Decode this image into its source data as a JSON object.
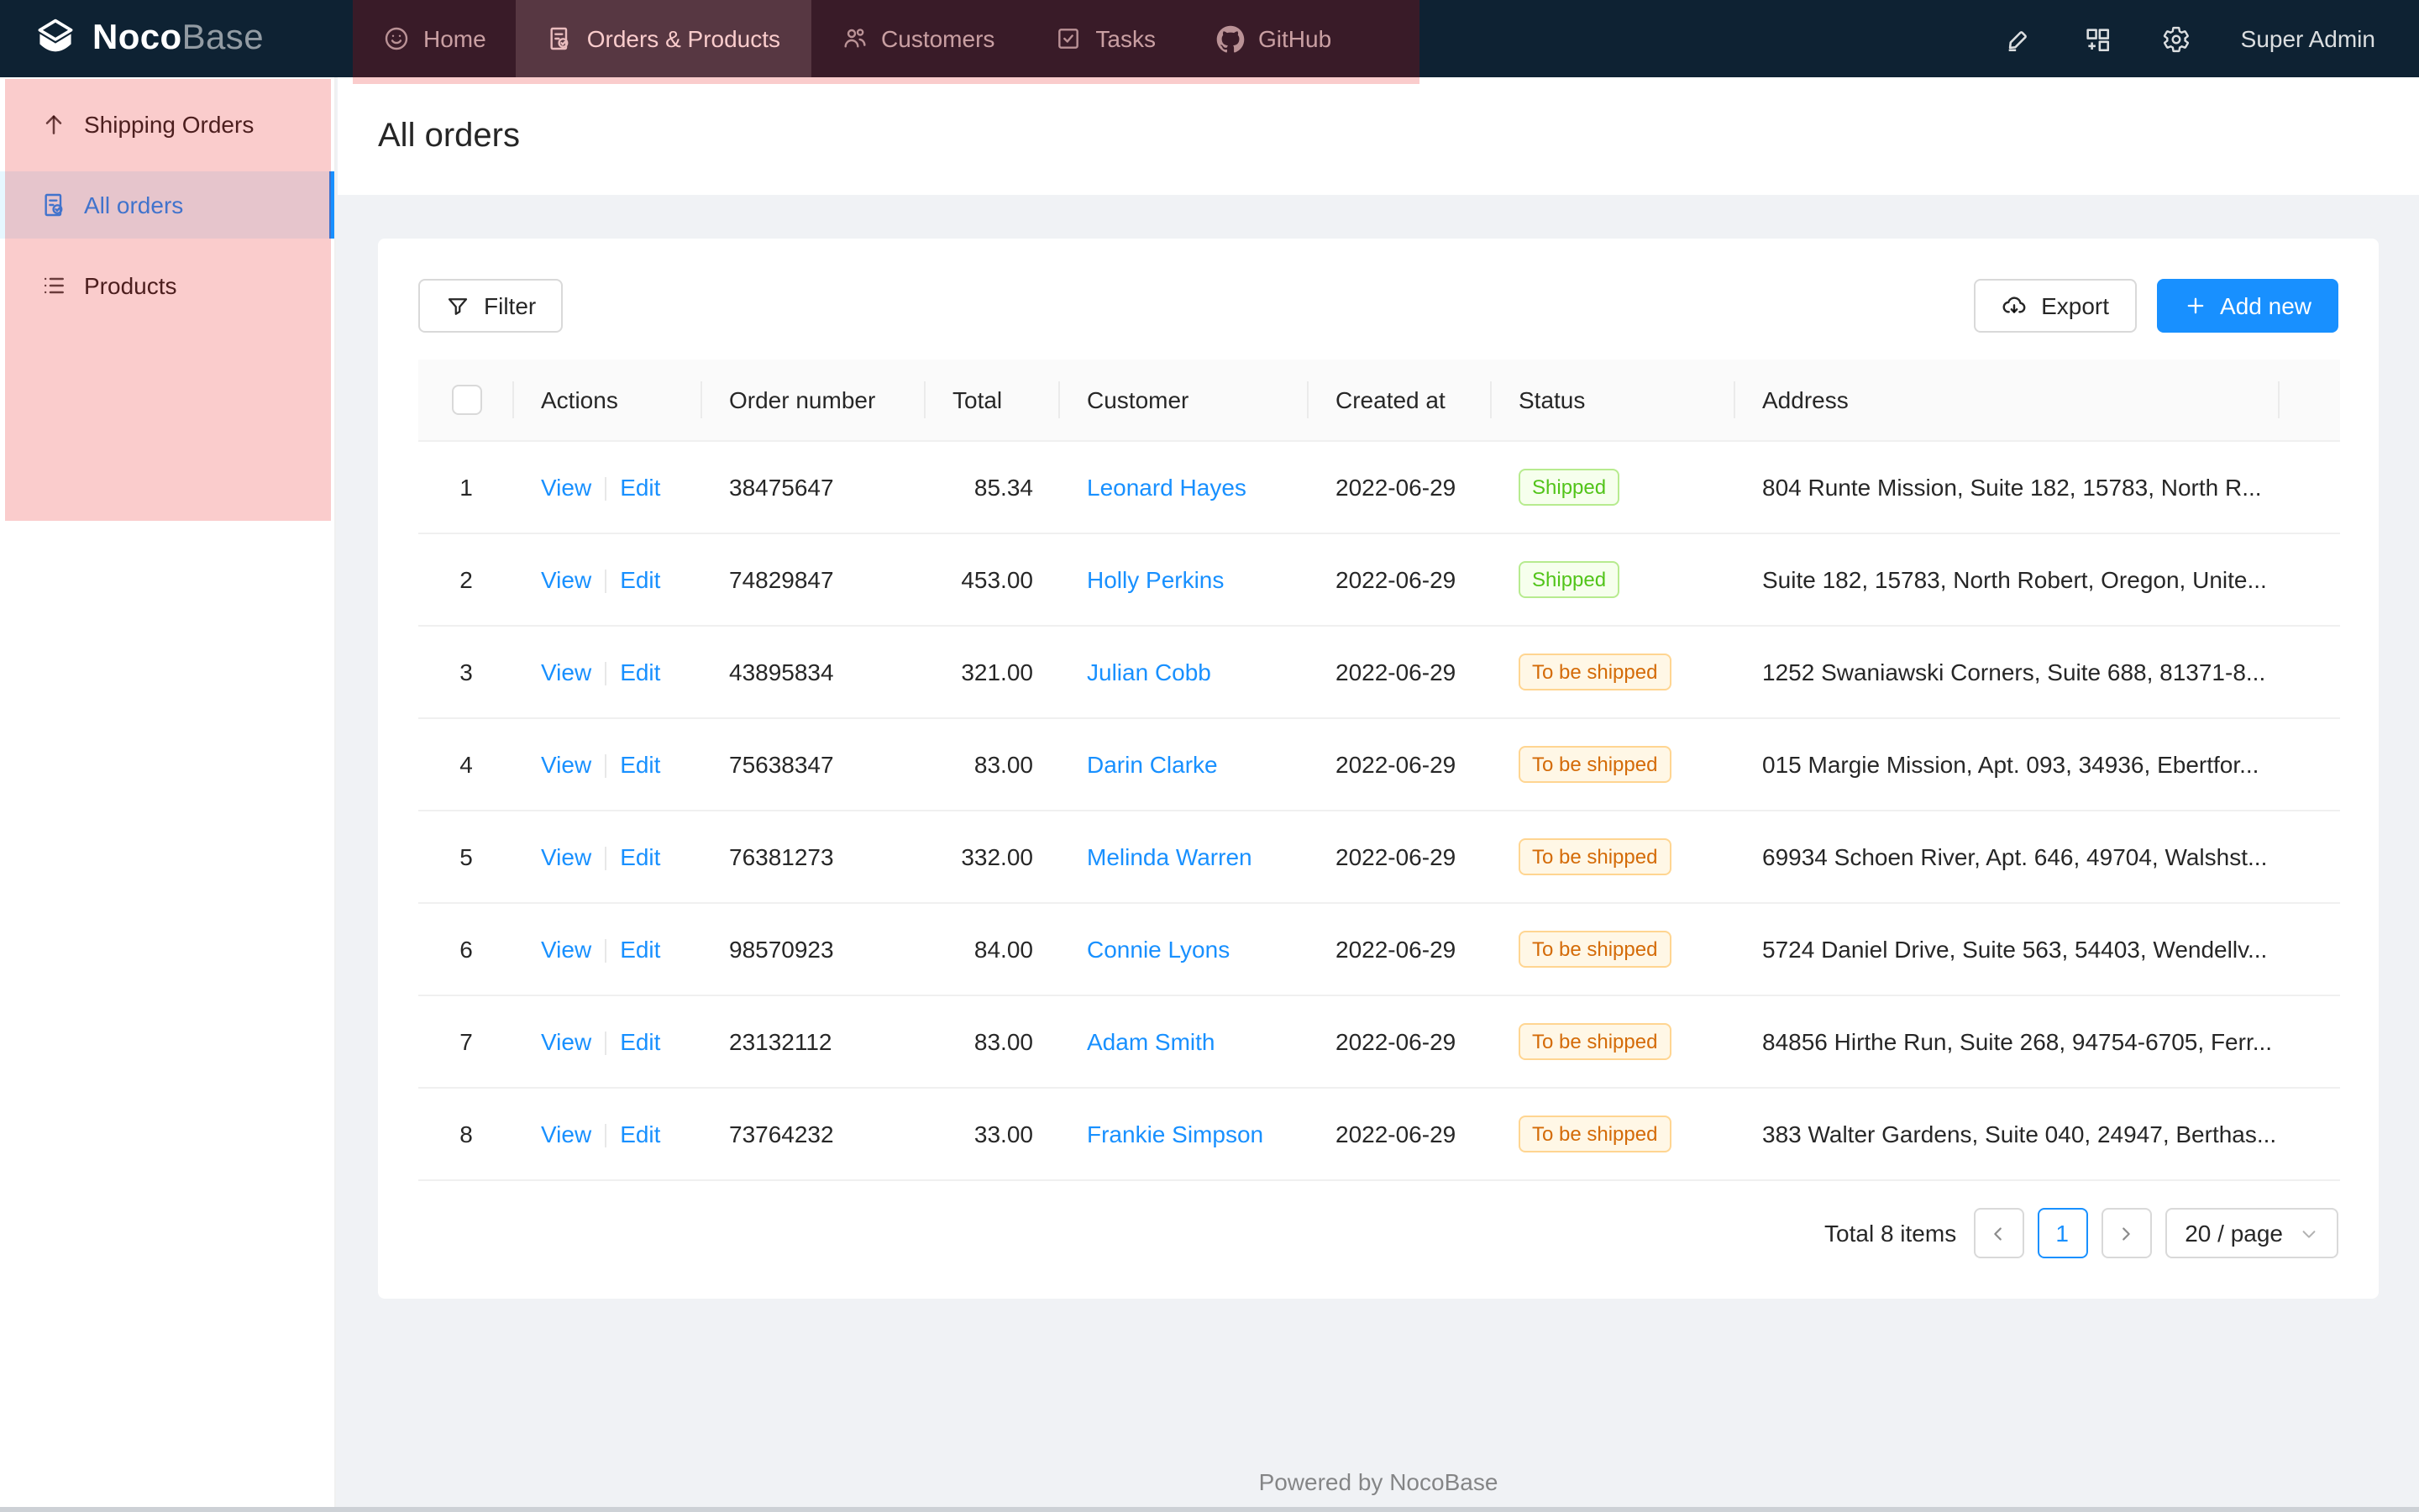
{
  "navbar": {
    "logo_bold": "Noco",
    "logo_light": "Base",
    "tabs": [
      {
        "label": "Home",
        "icon": "smile-icon",
        "active": false
      },
      {
        "label": "Orders & Products",
        "icon": "file-done-icon",
        "active": true
      },
      {
        "label": "Customers",
        "icon": "team-icon",
        "active": false
      },
      {
        "label": "Tasks",
        "icon": "check-square-icon",
        "active": false
      },
      {
        "label": "GitHub",
        "icon": "github-icon",
        "active": false
      }
    ],
    "action_icons": [
      "highlighter-icon",
      "appstore-add-icon",
      "settings-icon"
    ],
    "user": "Super Admin"
  },
  "sidebar": {
    "items": [
      {
        "label": "Shipping Orders",
        "icon": "arrow-up-icon",
        "selected": false
      },
      {
        "label": "All orders",
        "icon": "file-done-icon",
        "selected": true
      },
      {
        "label": "Products",
        "icon": "list-icon",
        "selected": false
      }
    ]
  },
  "page": {
    "title": "All orders"
  },
  "toolbar": {
    "filter_label": "Filter",
    "export_label": "Export",
    "add_new_label": "Add new"
  },
  "table": {
    "columns": [
      "",
      "Actions",
      "Order number",
      "Total",
      "Customer",
      "Created at",
      "Status",
      "Address"
    ],
    "view_label": "View",
    "edit_label": "Edit",
    "status_colors": {
      "Shipped": {
        "bg": "#f6ffed",
        "border": "#b7eb8f",
        "text": "#52c41a"
      },
      "To be shipped": {
        "bg": "#fff7e6",
        "border": "#ffd591",
        "text": "#d46b08"
      }
    },
    "rows": [
      {
        "index": 1,
        "order_number": "38475647",
        "total": "85.34",
        "customer": "Leonard Hayes",
        "created_at": "2022-06-29",
        "status": "Shipped",
        "address": "804 Runte Mission, Suite 182, 15783, North R..."
      },
      {
        "index": 2,
        "order_number": "74829847",
        "total": "453.00",
        "customer": "Holly Perkins",
        "created_at": "2022-06-29",
        "status": "Shipped",
        "address": "Suite 182, 15783, North Robert, Oregon, Unite..."
      },
      {
        "index": 3,
        "order_number": "43895834",
        "total": "321.00",
        "customer": "Julian Cobb",
        "created_at": "2022-06-29",
        "status": "To be shipped",
        "address": "1252 Swaniawski Corners, Suite 688, 81371-8..."
      },
      {
        "index": 4,
        "order_number": "75638347",
        "total": "83.00",
        "customer": "Darin Clarke",
        "created_at": "2022-06-29",
        "status": "To be shipped",
        "address": "015 Margie Mission, Apt. 093, 34936, Ebertfor..."
      },
      {
        "index": 5,
        "order_number": "76381273",
        "total": "332.00",
        "customer": "Melinda Warren",
        "created_at": "2022-06-29",
        "status": "To be shipped",
        "address": "69934 Schoen River, Apt. 646, 49704, Walshst..."
      },
      {
        "index": 6,
        "order_number": "98570923",
        "total": "84.00",
        "customer": "Connie Lyons",
        "created_at": "2022-06-29",
        "status": "To be shipped",
        "address": "5724 Daniel Drive, Suite 563, 54403, Wendellv..."
      },
      {
        "index": 7,
        "order_number": "23132112",
        "total": "83.00",
        "customer": "Adam Smith",
        "created_at": "2022-06-29",
        "status": "To be shipped",
        "address": "84856 Hirthe Run, Suite 268, 94754-6705, Ferr..."
      },
      {
        "index": 8,
        "order_number": "73764232",
        "total": "33.00",
        "customer": "Frankie Simpson",
        "created_at": "2022-06-29",
        "status": "To be shipped",
        "address": "383 Walter Gardens, Suite 040, 24947, Berthas..."
      }
    ]
  },
  "pagination": {
    "total_text": "Total 8 items",
    "current_page": "1",
    "page_size_label": "20 / page"
  },
  "footer": {
    "powered_by": "Powered by NocoBase"
  },
  "colors": {
    "accent": "#1890ff",
    "navbar_bg": "#0e2233",
    "content_bg": "#f0f2f5",
    "highlight_overlay": "rgba(230,0,0,0.2)"
  }
}
